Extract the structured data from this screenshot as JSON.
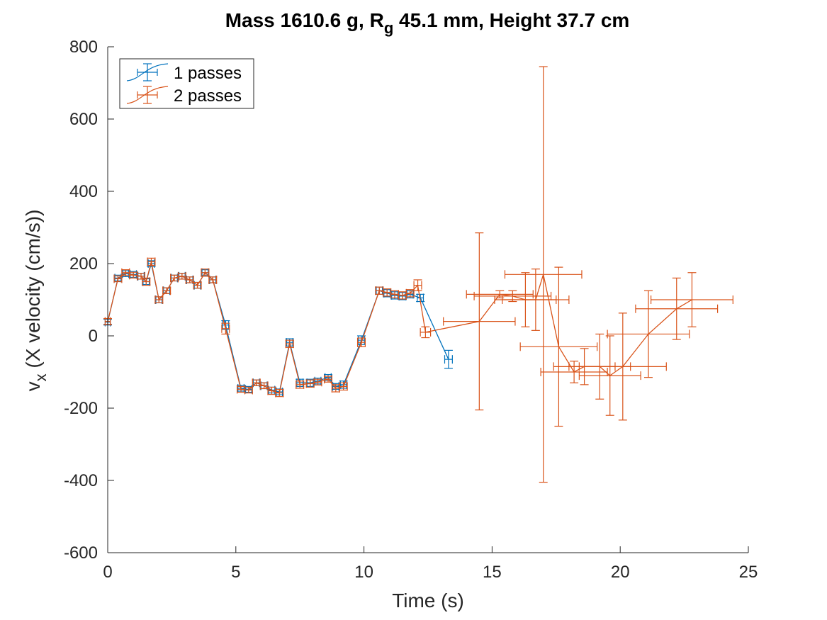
{
  "chart_data": {
    "type": "line",
    "title": {
      "prefix": "Mass 1610.6 g, R",
      "subscript": "g",
      "suffix": " 45.1 mm,  Height 37.7 cm"
    },
    "xlabel": "Time (s)",
    "ylabel": {
      "base": "v",
      "subscript": "x",
      "rest": " (X velocity (cm/s))"
    },
    "xlim": [
      0,
      25
    ],
    "ylim": [
      -600,
      800
    ],
    "xticks": [
      0,
      5,
      10,
      15,
      20,
      25
    ],
    "yticks": [
      -600,
      -400,
      -200,
      0,
      200,
      400,
      600,
      800
    ],
    "grid": false,
    "legend_position": "top-left",
    "series": [
      {
        "name": "1 passes",
        "color": "#0072BD",
        "points": [
          {
            "x": 0.0,
            "y": 38,
            "xerr": 0.1,
            "yerr": 8
          },
          {
            "x": 0.4,
            "y": 160,
            "xerr": 0.12,
            "yerr": 8
          },
          {
            "x": 0.7,
            "y": 172,
            "xerr": 0.12,
            "yerr": 8
          },
          {
            "x": 1.0,
            "y": 170,
            "xerr": 0.12,
            "yerr": 8
          },
          {
            "x": 1.3,
            "y": 165,
            "xerr": 0.12,
            "yerr": 8
          },
          {
            "x": 1.5,
            "y": 150,
            "xerr": 0.12,
            "yerr": 8
          },
          {
            "x": 1.7,
            "y": 200,
            "xerr": 0.12,
            "yerr": 8
          },
          {
            "x": 2.0,
            "y": 100,
            "xerr": 0.12,
            "yerr": 8
          },
          {
            "x": 2.3,
            "y": 125,
            "xerr": 0.12,
            "yerr": 8
          },
          {
            "x": 2.6,
            "y": 160,
            "xerr": 0.12,
            "yerr": 8
          },
          {
            "x": 2.9,
            "y": 165,
            "xerr": 0.12,
            "yerr": 8
          },
          {
            "x": 3.2,
            "y": 155,
            "xerr": 0.12,
            "yerr": 8
          },
          {
            "x": 3.5,
            "y": 140,
            "xerr": 0.12,
            "yerr": 8
          },
          {
            "x": 3.8,
            "y": 175,
            "xerr": 0.12,
            "yerr": 8
          },
          {
            "x": 4.1,
            "y": 155,
            "xerr": 0.12,
            "yerr": 8
          },
          {
            "x": 4.6,
            "y": 30,
            "xerr": 0.12,
            "yerr": 12
          },
          {
            "x": 5.2,
            "y": -145,
            "xerr": 0.12,
            "yerr": 8
          },
          {
            "x": 5.5,
            "y": -148,
            "xerr": 0.12,
            "yerr": 8
          },
          {
            "x": 5.8,
            "y": -130,
            "xerr": 0.12,
            "yerr": 8
          },
          {
            "x": 6.1,
            "y": -138,
            "xerr": 0.12,
            "yerr": 8
          },
          {
            "x": 6.4,
            "y": -150,
            "xerr": 0.12,
            "yerr": 8
          },
          {
            "x": 6.7,
            "y": -155,
            "xerr": 0.12,
            "yerr": 8
          },
          {
            "x": 7.1,
            "y": -18,
            "xerr": 0.12,
            "yerr": 10
          },
          {
            "x": 7.5,
            "y": -130,
            "xerr": 0.12,
            "yerr": 10
          },
          {
            "x": 7.9,
            "y": -130,
            "xerr": 0.12,
            "yerr": 10
          },
          {
            "x": 8.2,
            "y": -125,
            "xerr": 0.12,
            "yerr": 8
          },
          {
            "x": 8.6,
            "y": -115,
            "xerr": 0.12,
            "yerr": 8
          },
          {
            "x": 8.9,
            "y": -140,
            "xerr": 0.12,
            "yerr": 8
          },
          {
            "x": 9.2,
            "y": -135,
            "xerr": 0.12,
            "yerr": 10
          },
          {
            "x": 9.9,
            "y": -12,
            "xerr": 0.12,
            "yerr": 12
          },
          {
            "x": 10.6,
            "y": 125,
            "xerr": 0.12,
            "yerr": 10
          },
          {
            "x": 10.9,
            "y": 118,
            "xerr": 0.12,
            "yerr": 10
          },
          {
            "x": 11.2,
            "y": 112,
            "xerr": 0.12,
            "yerr": 10
          },
          {
            "x": 11.5,
            "y": 110,
            "xerr": 0.12,
            "yerr": 10
          },
          {
            "x": 11.8,
            "y": 115,
            "xerr": 0.12,
            "yerr": 10
          },
          {
            "x": 12.2,
            "y": 105,
            "xerr": 0.12,
            "yerr": 10
          },
          {
            "x": 13.3,
            "y": -65,
            "xerr": 0.15,
            "yerr": 25
          }
        ]
      },
      {
        "name": "2 passes",
        "color": "#D95319",
        "points": [
          {
            "x": 0.0,
            "y": 40,
            "xerr": 0.1,
            "yerr": 8
          },
          {
            "x": 0.4,
            "y": 158,
            "xerr": 0.15,
            "yerr": 8
          },
          {
            "x": 0.7,
            "y": 175,
            "xerr": 0.15,
            "yerr": 8
          },
          {
            "x": 1.0,
            "y": 168,
            "xerr": 0.15,
            "yerr": 8
          },
          {
            "x": 1.3,
            "y": 165,
            "xerr": 0.15,
            "yerr": 8
          },
          {
            "x": 1.5,
            "y": 150,
            "xerr": 0.15,
            "yerr": 10
          },
          {
            "x": 1.7,
            "y": 205,
            "xerr": 0.15,
            "yerr": 10
          },
          {
            "x": 2.0,
            "y": 100,
            "xerr": 0.15,
            "yerr": 8
          },
          {
            "x": 2.3,
            "y": 125,
            "xerr": 0.15,
            "yerr": 8
          },
          {
            "x": 2.6,
            "y": 160,
            "xerr": 0.15,
            "yerr": 8
          },
          {
            "x": 2.9,
            "y": 165,
            "xerr": 0.15,
            "yerr": 8
          },
          {
            "x": 3.2,
            "y": 155,
            "xerr": 0.15,
            "yerr": 8
          },
          {
            "x": 3.5,
            "y": 140,
            "xerr": 0.15,
            "yerr": 8
          },
          {
            "x": 3.8,
            "y": 175,
            "xerr": 0.15,
            "yerr": 10
          },
          {
            "x": 4.1,
            "y": 155,
            "xerr": 0.15,
            "yerr": 8
          },
          {
            "x": 4.6,
            "y": 20,
            "xerr": 0.15,
            "yerr": 15
          },
          {
            "x": 5.2,
            "y": -148,
            "xerr": 0.15,
            "yerr": 8
          },
          {
            "x": 5.5,
            "y": -150,
            "xerr": 0.15,
            "yerr": 8
          },
          {
            "x": 5.8,
            "y": -130,
            "xerr": 0.15,
            "yerr": 8
          },
          {
            "x": 6.1,
            "y": -138,
            "xerr": 0.15,
            "yerr": 8
          },
          {
            "x": 6.4,
            "y": -152,
            "xerr": 0.15,
            "yerr": 10
          },
          {
            "x": 6.7,
            "y": -158,
            "xerr": 0.15,
            "yerr": 10
          },
          {
            "x": 7.1,
            "y": -22,
            "xerr": 0.15,
            "yerr": 10
          },
          {
            "x": 7.5,
            "y": -135,
            "xerr": 0.15,
            "yerr": 10
          },
          {
            "x": 7.9,
            "y": -132,
            "xerr": 0.15,
            "yerr": 10
          },
          {
            "x": 8.2,
            "y": -128,
            "xerr": 0.15,
            "yerr": 8
          },
          {
            "x": 8.6,
            "y": -120,
            "xerr": 0.15,
            "yerr": 8
          },
          {
            "x": 8.9,
            "y": -145,
            "xerr": 0.15,
            "yerr": 10
          },
          {
            "x": 9.2,
            "y": -140,
            "xerr": 0.15,
            "yerr": 10
          },
          {
            "x": 9.9,
            "y": -18,
            "xerr": 0.15,
            "yerr": 12
          },
          {
            "x": 10.6,
            "y": 125,
            "xerr": 0.15,
            "yerr": 10
          },
          {
            "x": 10.9,
            "y": 120,
            "xerr": 0.15,
            "yerr": 10
          },
          {
            "x": 11.2,
            "y": 115,
            "xerr": 0.15,
            "yerr": 10
          },
          {
            "x": 11.5,
            "y": 112,
            "xerr": 0.15,
            "yerr": 10
          },
          {
            "x": 11.8,
            "y": 118,
            "xerr": 0.15,
            "yerr": 10
          },
          {
            "x": 12.1,
            "y": 140,
            "xerr": 0.15,
            "yerr": 15
          },
          {
            "x": 12.4,
            "y": 10,
            "xerr": 0.2,
            "yerr": 15
          },
          {
            "x": 14.5,
            "y": 40,
            "xerr": 1.4,
            "yerr": 245
          },
          {
            "x": 15.3,
            "y": 115,
            "xerr": 1.3,
            "yerr": 10
          },
          {
            "x": 15.8,
            "y": 110,
            "xerr": 1.5,
            "yerr": 15
          },
          {
            "x": 16.3,
            "y": 100,
            "xerr": 1.2,
            "yerr": 75
          },
          {
            "x": 16.7,
            "y": 100,
            "xerr": 1.3,
            "yerr": 85
          },
          {
            "x": 17.0,
            "y": 170,
            "xerr": 1.5,
            "yerr": 575
          },
          {
            "x": 17.6,
            "y": -30,
            "xerr": 1.5,
            "yerr": 220
          },
          {
            "x": 18.2,
            "y": -100,
            "xerr": 1.3,
            "yerr": 30
          },
          {
            "x": 18.6,
            "y": -85,
            "xerr": 1.2,
            "yerr": 50
          },
          {
            "x": 19.2,
            "y": -85,
            "xerr": 1.2,
            "yerr": 90
          },
          {
            "x": 19.6,
            "y": -110,
            "xerr": 1.2,
            "yerr": 110
          },
          {
            "x": 20.1,
            "y": -85,
            "xerr": 1.7,
            "yerr": 148
          },
          {
            "x": 21.1,
            "y": 5,
            "xerr": 1.6,
            "yerr": 120
          },
          {
            "x": 22.2,
            "y": 75,
            "xerr": 1.6,
            "yerr": 85
          },
          {
            "x": 22.8,
            "y": 100,
            "xerr": 1.6,
            "yerr": 75
          }
        ]
      }
    ]
  }
}
